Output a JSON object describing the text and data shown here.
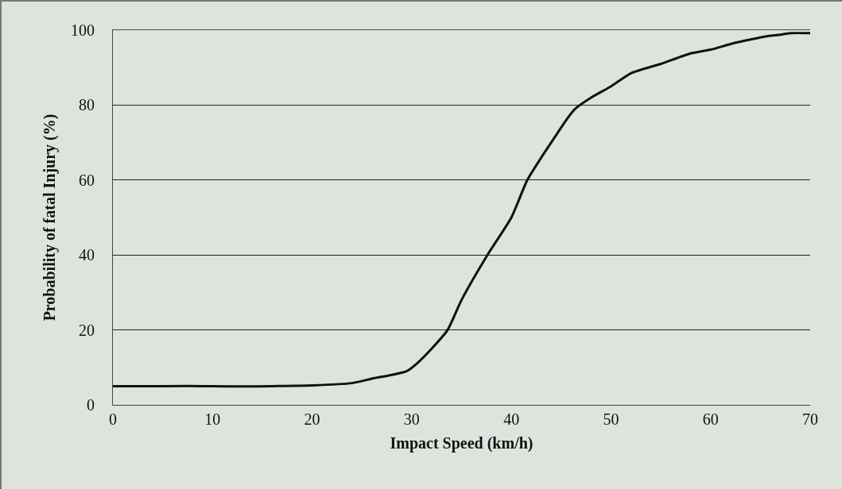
{
  "chart_data": {
    "type": "line",
    "xlabel": "Impact Speed (km/h)",
    "ylabel": "Probability of fatal Injury (%)",
    "x": [
      0,
      5,
      10,
      13,
      16,
      20,
      24,
      26,
      28,
      29.5,
      30.5,
      32,
      33.6,
      35,
      37.6,
      40,
      41.6,
      43,
      44.5,
      45.5,
      46.4,
      48,
      50,
      52,
      55,
      58,
      60,
      62,
      64,
      66,
      67,
      68,
      70
    ],
    "series": [
      {
        "color": "#111111",
        "values": [
          5,
          5,
          5,
          4.9,
          5,
          5.2,
          5.8,
          7,
          8,
          9,
          11,
          15,
          20,
          28,
          40,
          50,
          60,
          66,
          72,
          76,
          79,
          82,
          85,
          88.5,
          91,
          93.8,
          94.8,
          96.3,
          97.5,
          98.5,
          98.8,
          99.2,
          99.2
        ]
      }
    ],
    "xlim": [
      0,
      70
    ],
    "xticks": [
      0,
      10,
      20,
      30,
      40,
      50,
      60,
      70
    ],
    "ylim": [
      0,
      100
    ],
    "yticks": [
      0,
      20,
      40,
      60,
      80,
      100
    ],
    "grid": "y",
    "marker": "none",
    "line_style": "solid"
  }
}
